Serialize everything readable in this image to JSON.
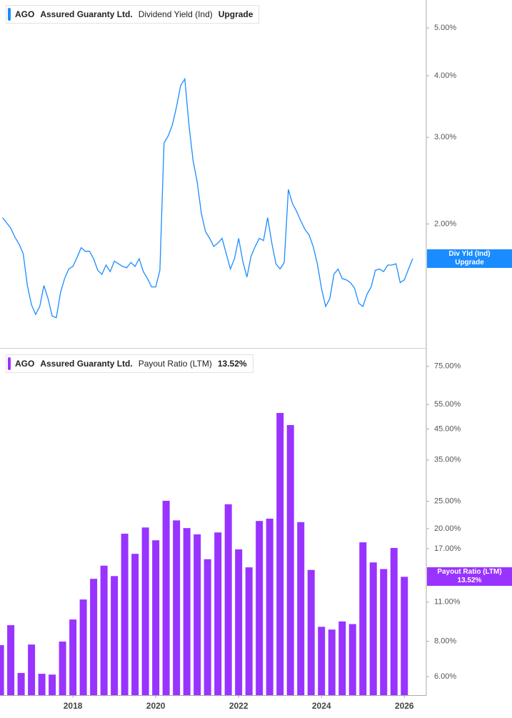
{
  "chart_data": [
    {
      "type": "line",
      "ticker": "AGO",
      "company": "Assured Guaranty Ltd.",
      "status": "Upgrade",
      "tag_title": "Div Yld (Ind)",
      "log_scale": true,
      "x": [
        2016.3,
        2016.4,
        2016.5,
        2016.6,
        2016.7,
        2016.8,
        2016.9,
        2017.0,
        2017.1,
        2017.2,
        2017.3,
        2017.4,
        2017.5,
        2017.6,
        2017.7,
        2017.8,
        2017.9,
        2018.0,
        2018.1,
        2018.2,
        2018.3,
        2018.4,
        2018.5,
        2018.6,
        2018.7,
        2018.8,
        2018.9,
        2019.0,
        2019.1,
        2019.2,
        2019.3,
        2019.4,
        2019.5,
        2019.6,
        2019.7,
        2019.8,
        2019.9,
        2020.0,
        2020.1,
        2020.2,
        2020.3,
        2020.4,
        2020.5,
        2020.6,
        2020.7,
        2020.8,
        2020.9,
        2021.0,
        2021.1,
        2021.2,
        2021.3,
        2021.4,
        2021.5,
        2021.6,
        2021.7,
        2021.8,
        2021.9,
        2022.0,
        2022.1,
        2022.2,
        2022.3,
        2022.4,
        2022.5,
        2022.6,
        2022.7,
        2022.8,
        2022.9,
        2023.0,
        2023.1,
        2023.2,
        2023.3,
        2023.4,
        2023.5,
        2023.6,
        2023.7,
        2023.8,
        2023.9,
        2024.0,
        2024.1,
        2024.2,
        2024.3,
        2024.4,
        2024.5,
        2024.6,
        2024.7,
        2024.8,
        2024.9,
        2025.0,
        2025.1,
        2025.2,
        2025.3,
        2025.4,
        2025.5,
        2025.6,
        2025.7,
        2025.8,
        2025.9,
        2026.0,
        2026.1,
        2026.2
      ],
      "series": [
        {
          "name": "Dividend Yield (Ind)",
          "color": "#1a8cff",
          "values": [
            2.06,
            2.01,
            1.96,
            1.88,
            1.82,
            1.74,
            1.5,
            1.37,
            1.31,
            1.36,
            1.5,
            1.41,
            1.3,
            1.29,
            1.45,
            1.55,
            1.62,
            1.64,
            1.71,
            1.79,
            1.76,
            1.76,
            1.7,
            1.61,
            1.58,
            1.65,
            1.6,
            1.68,
            1.66,
            1.64,
            1.63,
            1.67,
            1.64,
            1.7,
            1.6,
            1.55,
            1.49,
            1.49,
            1.61,
            2.92,
            3.02,
            3.18,
            3.46,
            3.82,
            3.94,
            3.18,
            2.69,
            2.43,
            2.1,
            1.93,
            1.87,
            1.8,
            1.83,
            1.87,
            1.74,
            1.62,
            1.7,
            1.87,
            1.68,
            1.56,
            1.72,
            1.8,
            1.87,
            1.85,
            2.06,
            1.83,
            1.66,
            1.62,
            1.67,
            2.35,
            2.2,
            2.12,
            2.03,
            1.95,
            1.9,
            1.8,
            1.66,
            1.48,
            1.36,
            1.41,
            1.58,
            1.62,
            1.55,
            1.54,
            1.52,
            1.48,
            1.38,
            1.36,
            1.44,
            1.49,
            1.61,
            1.62,
            1.6,
            1.65,
            1.65,
            1.66,
            1.52,
            1.54,
            1.62,
            1.7
          ]
        }
      ],
      "xlim": [
        2016.24,
        2026.53
      ],
      "ylim": [
        1.12,
        5.7
      ],
      "yticks": [
        {
          "value": 2,
          "label": "2.00%"
        },
        {
          "value": 3,
          "label": "3.00%"
        },
        {
          "value": 4,
          "label": "4.00%"
        },
        {
          "value": 5,
          "label": "5.00%"
        }
      ]
    },
    {
      "type": "bar",
      "ticker": "AGO",
      "company": "Assured Guaranty Ltd.",
      "status": "13.52%",
      "tag_title": "Payout Ratio (LTM)",
      "log_scale": true,
      "x": [
        2016.25,
        2016.5,
        2016.75,
        2017,
        2017.25,
        2017.5,
        2017.75,
        2018,
        2018.25,
        2018.5,
        2018.75,
        2019,
        2019.25,
        2019.5,
        2019.75,
        2020,
        2020.25,
        2020.5,
        2020.75,
        2021,
        2021.25,
        2021.5,
        2021.75,
        2022,
        2022.25,
        2022.5,
        2022.75,
        2023,
        2023.25,
        2023.5,
        2023.75,
        2024,
        2024.25,
        2024.5,
        2024.75,
        2025,
        2025.25,
        2025.5,
        2025.75,
        2026
      ],
      "series": [
        {
          "name": "Payout Ratio (LTM)",
          "color": "#9933ff",
          "values": [
            7.75,
            9.12,
            6.18,
            7.79,
            6.14,
            6.1,
            7.98,
            9.55,
            11.24,
            13.3,
            14.8,
            13.6,
            19.2,
            16.3,
            20.2,
            18.2,
            25.1,
            21.4,
            20.1,
            19.1,
            15.6,
            19.4,
            24.4,
            16.9,
            14.6,
            21.3,
            21.7,
            51.3,
            46.5,
            21.1,
            14.3,
            9.0,
            8.8,
            9.4,
            9.2,
            17.9,
            15.2,
            14.4,
            17.1,
            13.52
          ]
        }
      ],
      "xlim": [
        2016.24,
        2026.53
      ],
      "ylim": [
        5.16,
        85.6
      ],
      "xticks": [
        2018,
        2020,
        2022,
        2024,
        2026
      ],
      "yticks": [
        {
          "value": 6,
          "label": "6.00%"
        },
        {
          "value": 8,
          "label": "8.00%"
        },
        {
          "value": 11,
          "label": "11.00%"
        },
        {
          "value": 17,
          "label": "17.00%"
        },
        {
          "value": 20,
          "label": "20.00%"
        },
        {
          "value": 25,
          "label": "25.00%"
        },
        {
          "value": 35,
          "label": "35.00%"
        },
        {
          "value": 45,
          "label": "45.00%"
        },
        {
          "value": 55,
          "label": "55.00%"
        },
        {
          "value": 75,
          "label": "75.00%"
        }
      ]
    }
  ]
}
